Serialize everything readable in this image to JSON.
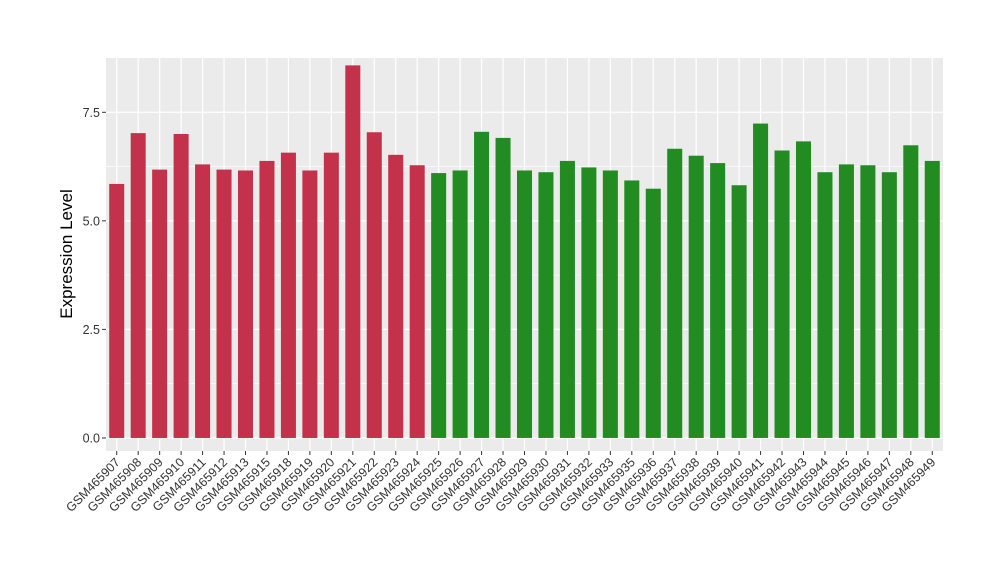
{
  "chart_data": {
    "type": "bar",
    "title": "",
    "xlabel": "",
    "ylabel": "Expression Level",
    "ylim": [
      -0.3,
      8.75
    ],
    "yticks": [
      0.0,
      2.5,
      5.0,
      7.5
    ],
    "ytick_labels": [
      "0.0",
      "2.5",
      "5.0",
      "7.5"
    ],
    "grid": true,
    "legend": "none",
    "colors": {
      "panel": "#EBEBEB",
      "grid": "#FFFFFF",
      "group1": "#C3314A",
      "group2": "#228B22"
    },
    "categories": [
      "GSM465907",
      "GSM465908",
      "GSM465909",
      "GSM465910",
      "GSM465911",
      "GSM465912",
      "GSM465913",
      "GSM465915",
      "GSM465918",
      "GSM465919",
      "GSM465920",
      "GSM465921",
      "GSM465922",
      "GSM465923",
      "GSM465924",
      "GSM465925",
      "GSM465926",
      "GSM465927",
      "GSM465928",
      "GSM465929",
      "GSM465930",
      "GSM465931",
      "GSM465932",
      "GSM465933",
      "GSM465935",
      "GSM465936",
      "GSM465937",
      "GSM465938",
      "GSM465939",
      "GSM465940",
      "GSM465941",
      "GSM465942",
      "GSM465943",
      "GSM465944",
      "GSM465945",
      "GSM465946",
      "GSM465947",
      "GSM465948",
      "GSM465949"
    ],
    "values": [
      5.85,
      7.02,
      6.18,
      7.0,
      6.3,
      6.18,
      6.16,
      6.38,
      6.57,
      6.16,
      6.57,
      8.58,
      7.04,
      6.52,
      6.28,
      6.1,
      6.16,
      7.05,
      6.91,
      6.16,
      6.12,
      6.38,
      6.23,
      6.16,
      5.93,
      5.74,
      6.66,
      6.5,
      6.33,
      5.82,
      7.24,
      6.62,
      6.83,
      6.12,
      6.3,
      6.28,
      6.12,
      6.74,
      6.38
    ],
    "groups": [
      1,
      1,
      1,
      1,
      1,
      1,
      1,
      1,
      1,
      1,
      1,
      1,
      1,
      1,
      1,
      2,
      2,
      2,
      2,
      2,
      2,
      2,
      2,
      2,
      2,
      2,
      2,
      2,
      2,
      2,
      2,
      2,
      2,
      2,
      2,
      2,
      2,
      2,
      2
    ]
  }
}
